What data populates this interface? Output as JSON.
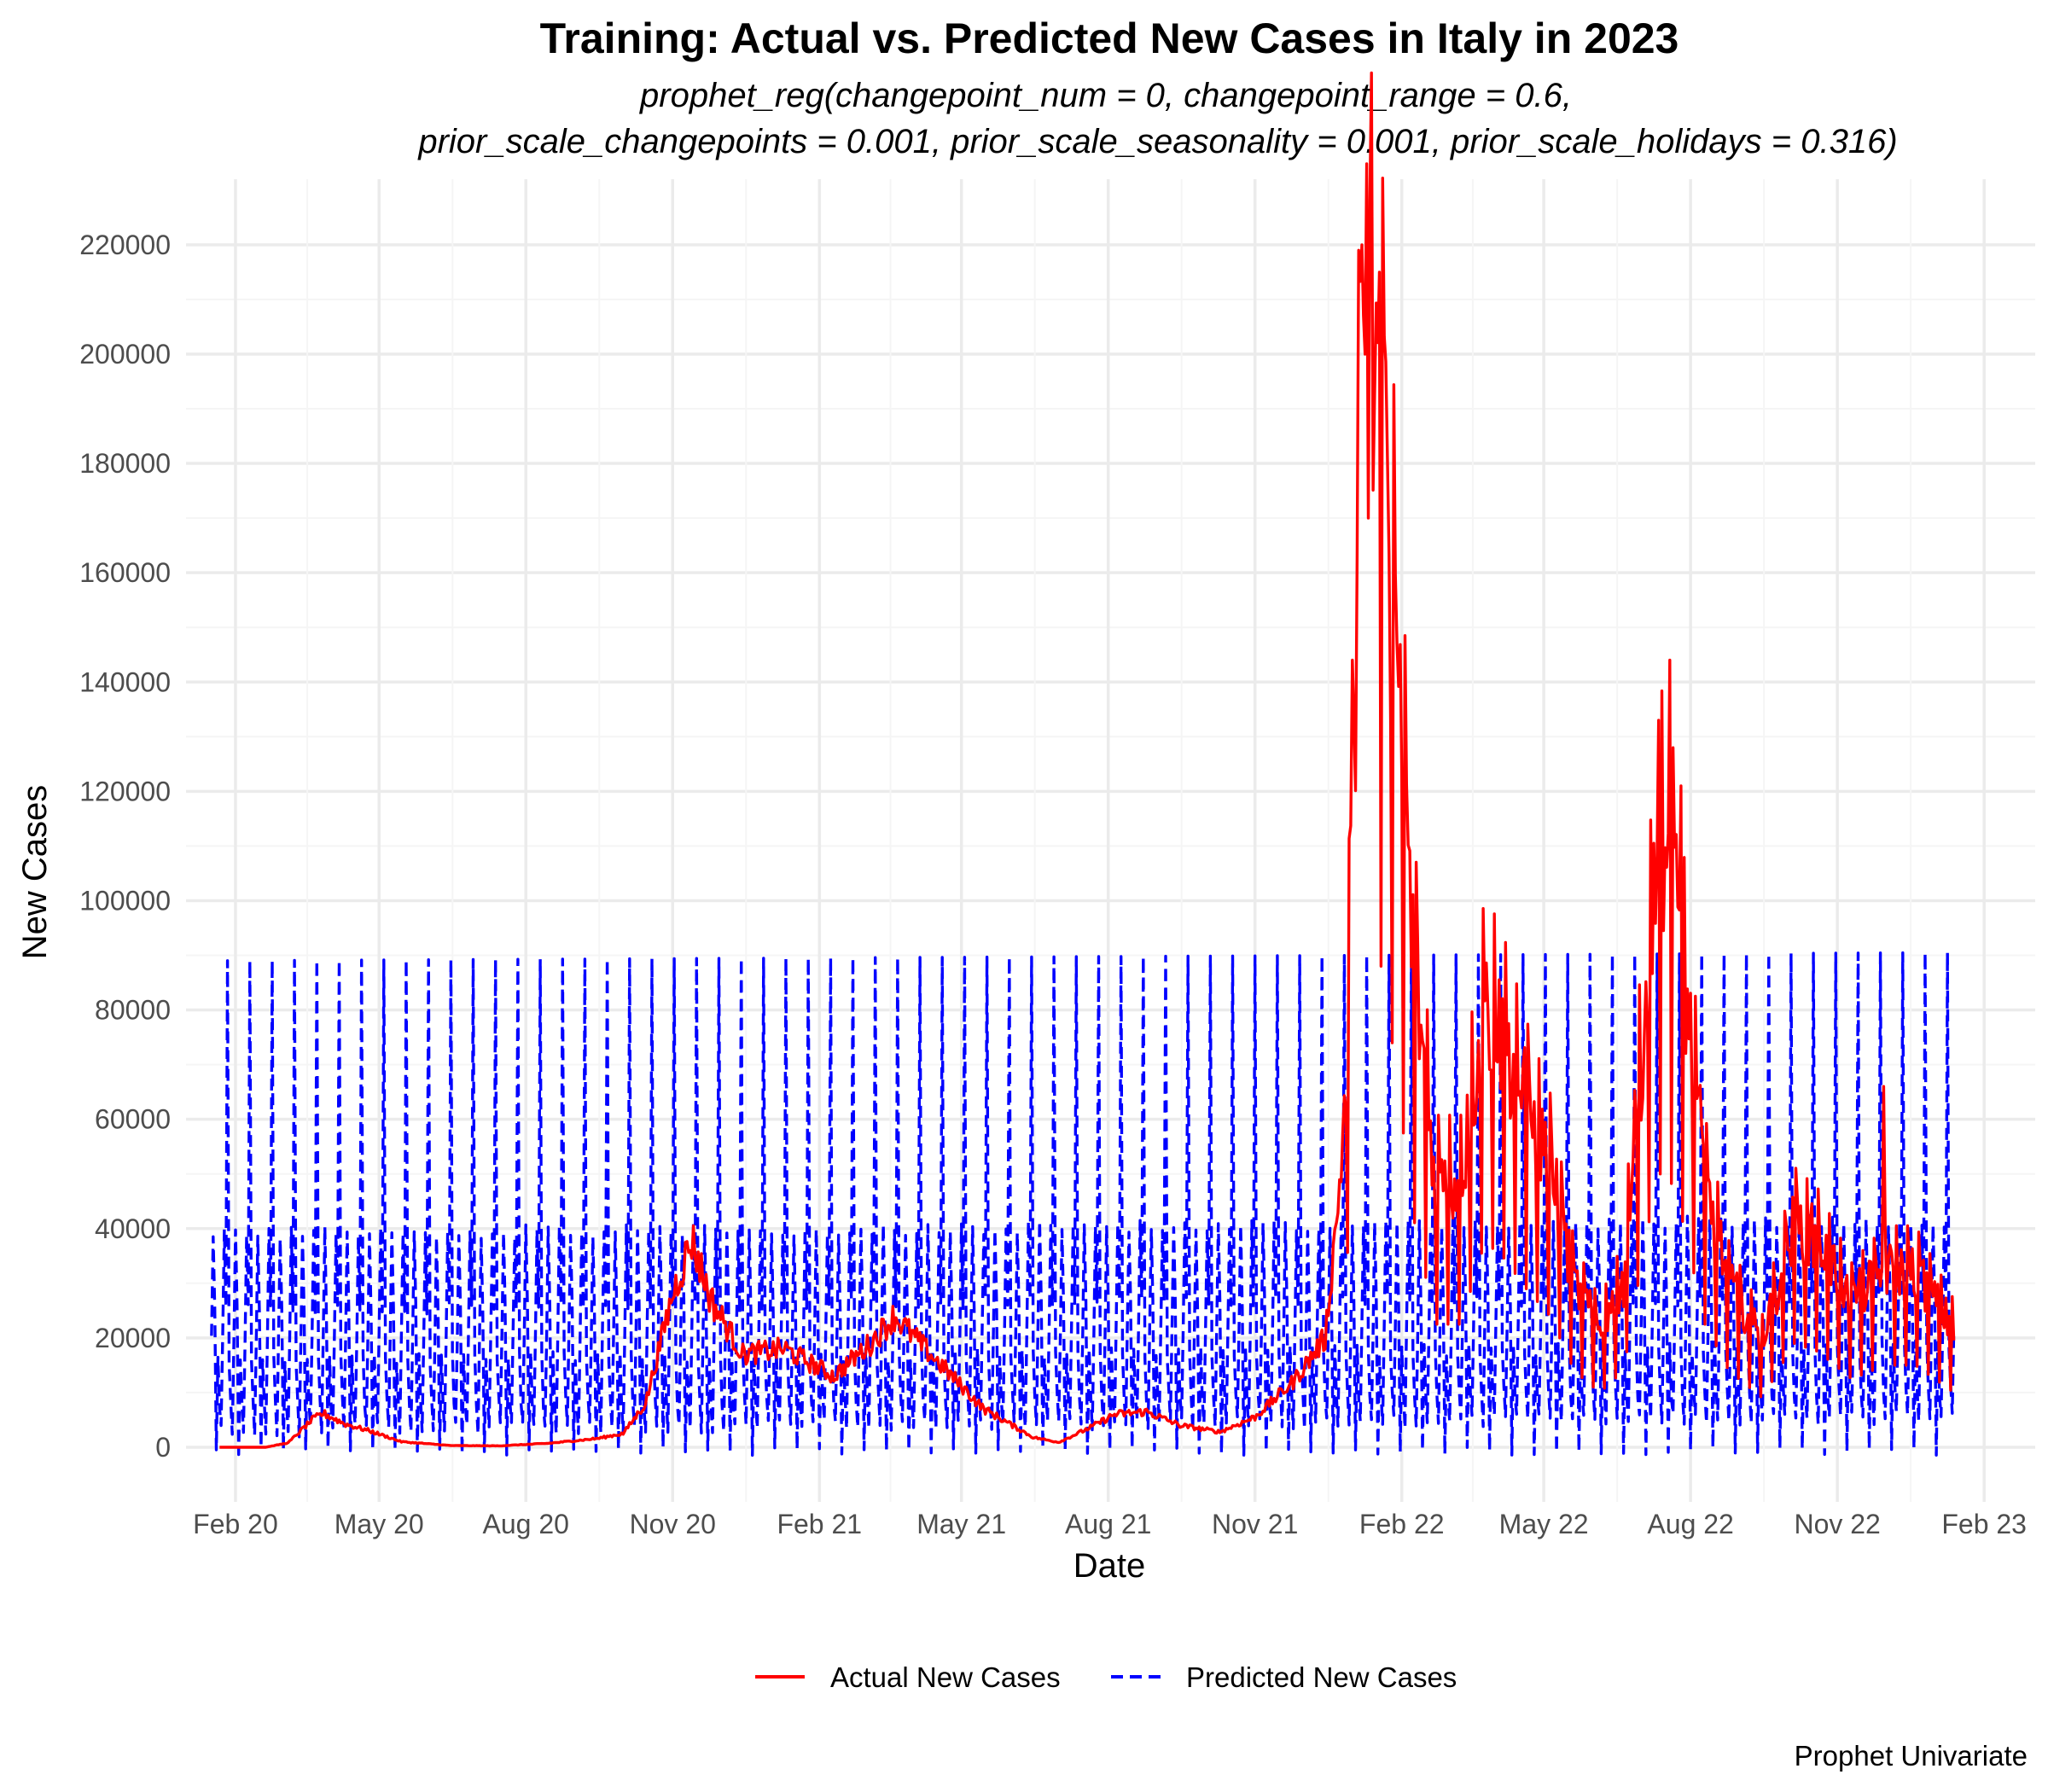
{
  "chart_data": {
    "type": "line",
    "title": "Training: Actual vs. Predicted New Cases in Italy in 2023",
    "subtitle_lines": [
      "prophet_reg(changepoint_num = 0, changepoint_range = 0.6,",
      "prior_scale_changepoints = 0.001, prior_scale_seasonality = 0.001, prior_scale_holidays = 0.316)"
    ],
    "xlabel": "Date",
    "ylabel": "New Cases",
    "caption": "Prophet Univariate",
    "x_range": [
      "2020-01-01",
      "2023-03-05"
    ],
    "ylim": [
      -10000,
      232000
    ],
    "y_ticks": [
      0,
      20000,
      40000,
      60000,
      80000,
      100000,
      120000,
      140000,
      160000,
      180000,
      200000,
      220000
    ],
    "x_ticks": [
      {
        "date": "2020-02-01",
        "label": "Feb 20"
      },
      {
        "date": "2020-05-01",
        "label": "May 20"
      },
      {
        "date": "2020-08-01",
        "label": "Aug 20"
      },
      {
        "date": "2020-11-01",
        "label": "Nov 20"
      },
      {
        "date": "2021-02-01",
        "label": "Feb 21"
      },
      {
        "date": "2021-05-01",
        "label": "May 21"
      },
      {
        "date": "2021-08-01",
        "label": "Aug 21"
      },
      {
        "date": "2021-11-01",
        "label": "Nov 21"
      },
      {
        "date": "2022-02-01",
        "label": "Feb 22"
      },
      {
        "date": "2022-05-01",
        "label": "May 22"
      },
      {
        "date": "2022-08-01",
        "label": "Aug 22"
      },
      {
        "date": "2022-11-01",
        "label": "Nov 22"
      },
      {
        "date": "2023-02-01",
        "label": "Feb 23"
      }
    ],
    "grid": true,
    "legend": {
      "position": "bottom"
    },
    "series": [
      {
        "name": "Actual New Cases",
        "color": "#ff0000",
        "line_style": "solid",
        "frequency": "daily",
        "start_date": "2020-01-22",
        "end_date": "2023-01-13",
        "anchors": [
          [
            "2020-01-22",
            0
          ],
          [
            "2020-02-20",
            0
          ],
          [
            "2020-03-05",
            800
          ],
          [
            "2020-03-20",
            5000
          ],
          [
            "2020-03-27",
            6200
          ],
          [
            "2020-04-10",
            4200
          ],
          [
            "2020-04-25",
            3000
          ],
          [
            "2020-05-15",
            1000
          ],
          [
            "2020-06-15",
            300
          ],
          [
            "2020-07-15",
            250
          ],
          [
            "2020-08-15",
            700
          ],
          [
            "2020-09-15",
            1600
          ],
          [
            "2020-10-01",
            2500
          ],
          [
            "2020-10-15",
            8000
          ],
          [
            "2020-11-01",
            28000
          ],
          [
            "2020-11-13",
            38000
          ],
          [
            "2020-11-25",
            27000
          ],
          [
            "2020-12-15",
            17000
          ],
          [
            "2021-01-10",
            18000
          ],
          [
            "2021-02-10",
            13000
          ],
          [
            "2021-03-05",
            19000
          ],
          [
            "2021-03-20",
            24000
          ],
          [
            "2021-04-05",
            19000
          ],
          [
            "2021-04-25",
            13000
          ],
          [
            "2021-05-15",
            7000
          ],
          [
            "2021-06-15",
            1800
          ],
          [
            "2021-07-01",
            900
          ],
          [
            "2021-07-20",
            3500
          ],
          [
            "2021-08-05",
            6000
          ],
          [
            "2021-08-25",
            6500
          ],
          [
            "2021-09-15",
            4000
          ],
          [
            "2021-10-10",
            2800
          ],
          [
            "2021-11-01",
            5500
          ],
          [
            "2021-11-25",
            12000
          ],
          [
            "2021-12-15",
            20000
          ],
          [
            "2021-12-28",
            60000
          ],
          [
            "2022-01-05",
            150000
          ],
          [
            "2022-01-10",
            190000
          ],
          [
            "2022-01-18",
            180000
          ],
          [
            "2022-01-28",
            140000
          ],
          [
            "2022-02-08",
            85000
          ],
          [
            "2022-02-22",
            45000
          ],
          [
            "2022-03-10",
            45000
          ],
          [
            "2022-03-25",
            75000
          ],
          [
            "2022-04-05",
            70000
          ],
          [
            "2022-04-20",
            58000
          ],
          [
            "2022-05-05",
            48000
          ],
          [
            "2022-05-20",
            28000
          ],
          [
            "2022-06-05",
            20000
          ],
          [
            "2022-06-20",
            28000
          ],
          [
            "2022-07-05",
            80000
          ],
          [
            "2022-07-15",
            105000
          ],
          [
            "2022-07-25",
            88000
          ],
          [
            "2022-08-10",
            45000
          ],
          [
            "2022-08-25",
            28000
          ],
          [
            "2022-09-15",
            18000
          ],
          [
            "2022-10-05",
            38000
          ],
          [
            "2022-10-20",
            35000
          ],
          [
            "2022-11-10",
            25000
          ],
          [
            "2022-12-01",
            30000
          ],
          [
            "2022-12-20",
            30000
          ],
          [
            "2023-01-13",
            20000
          ]
        ],
        "peaks": [
          [
            "2022-01-01",
            144000
          ],
          [
            "2022-01-05",
            219000
          ],
          [
            "2022-01-07",
            220000
          ],
          [
            "2022-01-09",
            200000
          ],
          [
            "2022-01-12",
            228000
          ],
          [
            "2022-01-18",
            215000
          ],
          [
            "2022-01-25",
            133000
          ],
          [
            "2022-07-12",
            133000
          ],
          [
            "2022-07-19",
            144000
          ],
          [
            "2022-07-26",
            121000
          ],
          [
            "2022-11-30",
            66000
          ]
        ]
      },
      {
        "name": "Predicted New Cases",
        "color": "#0000ff",
        "line_style": "dashed",
        "frequency": "daily",
        "start_date": "2020-01-17",
        "end_date": "2023-01-13",
        "weekly_profile": [
          20000,
          39000,
          25000,
          0,
          16000,
          8000,
          3000
        ],
        "holiday_spike": 89000,
        "holiday_spike_interval_days": 14
      }
    ]
  }
}
